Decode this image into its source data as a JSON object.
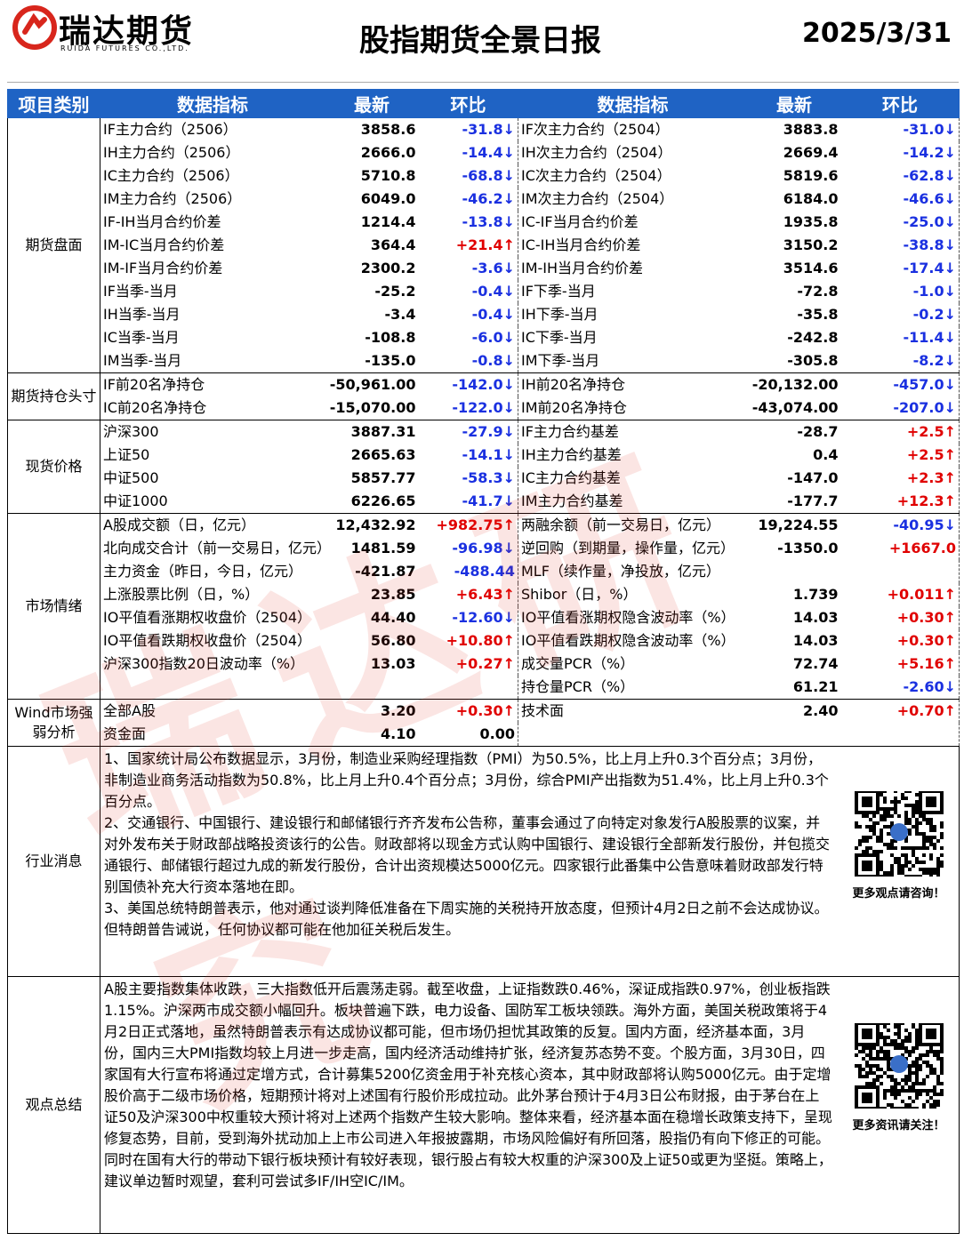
{
  "header": {
    "logo_name": "瑞达期货",
    "logo_sub": "RUIDA FUTURES CO.,LTD.",
    "title": "股指期货全景日报",
    "date": "2025/3/31"
  },
  "watermark": "瑞达研究",
  "table": {
    "columns": [
      "项目类别",
      "数据指标",
      "最新",
      "环比",
      "数据指标",
      "最新",
      "环比"
    ],
    "sections": [
      {
        "category": "期货盘面",
        "rows": [
          [
            "IF主力合约（2506）",
            "3858.6",
            "-31.8↓",
            "IF次主力合约（2504）",
            "3883.8",
            "-31.0↓"
          ],
          [
            "IH主力合约（2506）",
            "2666.0",
            "-14.4↓",
            "IH次主力合约（2504）",
            "2669.4",
            "-14.2↓"
          ],
          [
            "IC主力合约（2506）",
            "5710.8",
            "-68.8↓",
            "IC次主力合约（2504）",
            "5819.6",
            "-62.8↓"
          ],
          [
            "IM主力合约（2506）",
            "6049.0",
            "-46.2↓",
            "IM次主力合约（2504）",
            "6184.0",
            "-46.6↓"
          ],
          [
            "IF-IH当月合约价差",
            "1214.4",
            "-13.8↓",
            "IC-IF当月合约价差",
            "1935.8",
            "-25.0↓"
          ],
          [
            "IM-IC当月合约价差",
            "364.4",
            "+21.4↑",
            "IC-IH当月合约价差",
            "3150.2",
            "-38.8↓"
          ],
          [
            "IM-IF当月合约价差",
            "2300.2",
            "-3.6↓",
            "IM-IH当月合约价差",
            "3514.6",
            "-17.4↓"
          ],
          [
            "IF当季-当月",
            "-25.2",
            "-0.4↓",
            "IF下季-当月",
            "-72.8",
            "-1.0↓"
          ],
          [
            "IH当季-当月",
            "-3.4",
            "-0.4↓",
            "IH下季-当月",
            "-35.8",
            "-0.2↓"
          ],
          [
            "IC当季-当月",
            "-108.8",
            "-6.0↓",
            "IC下季-当月",
            "-242.8",
            "-11.4↓"
          ],
          [
            "IM当季-当月",
            "-135.0",
            "-0.8↓",
            "IM下季-当月",
            "-305.8",
            "-8.2↓"
          ]
        ]
      },
      {
        "category": "期货持仓头寸",
        "rows": [
          [
            "IF前20名净持仓",
            "-50,961.00",
            "-142.0↓",
            "IH前20名净持仓",
            "-20,132.00",
            "-457.0↓"
          ],
          [
            "IC前20名净持仓",
            "-15,070.00",
            "-122.0↓",
            "IM前20名净持仓",
            "-43,074.00",
            "-207.0↓"
          ]
        ]
      },
      {
        "category": "现货价格",
        "rows": [
          [
            "沪深300",
            "3887.31",
            "-27.9↓",
            "IF主力合约基差",
            "-28.7",
            "+2.5↑"
          ],
          [
            "上证50",
            "2665.63",
            "-14.1↓",
            "IH主力合约基差",
            "0.4",
            "+2.5↑"
          ],
          [
            "中证500",
            "5857.77",
            "-58.3↓",
            "IC主力合约基差",
            "-147.0",
            "+2.3↑"
          ],
          [
            "中证1000",
            "6226.65",
            "-41.7↓",
            "IM主力合约基差",
            "-177.7",
            "+12.3↑"
          ]
        ]
      },
      {
        "category": "市场情绪",
        "rows": [
          [
            "A股成交额（日，亿元）",
            "12,432.92",
            "+982.75↑",
            "两融余额（前一交易日，亿元）",
            "19,224.55",
            "-40.95↓"
          ],
          [
            "北向成交合计（前一交易日，亿元）",
            "1481.59",
            "-96.98↓",
            "逆回购（到期量，操作量，亿元）",
            "-1350.0",
            "+1667.0"
          ],
          [
            "主力资金（昨日，今日，亿元）",
            "-421.87",
            "-488.44",
            "MLF（续作量，净投放，亿元）",
            null,
            null
          ],
          [
            "上涨股票比例（日，%）",
            "23.85",
            "+6.43↑",
            "Shibor（日，%）",
            "1.739",
            "+0.011↑"
          ],
          [
            "IO平值看涨期权收盘价（2504）",
            "44.40",
            "-12.60↓",
            "IO平值看涨期权隐含波动率（%）",
            "14.03",
            "+0.30↑"
          ],
          [
            "IO平值看跌期权收盘价（2504）",
            "56.80",
            "+10.80↑",
            "IO平值看跌期权隐含波动率（%）",
            "14.03",
            "+0.30↑"
          ],
          [
            "沪深300指数20日波动率（%）",
            "13.03",
            "+0.27↑",
            "成交量PCR（%）",
            "72.74",
            "+5.16↑"
          ],
          [
            null,
            null,
            null,
            "持仓量PCR（%）",
            "61.21",
            "-2.60↓"
          ]
        ]
      },
      {
        "category": "Wind市场强弱分析",
        "rows": [
          [
            "全部A股",
            "3.20",
            "+0.30↑",
            "技术面",
            "2.40",
            "+0.70↑"
          ],
          [
            "资金面",
            "4.10",
            "0.00",
            null,
            null,
            null
          ]
        ]
      }
    ]
  },
  "news": {
    "category": "行业消息",
    "paragraphs": [
      "1、国家统计局公布数据显示，3月份，制造业采购经理指数（PMI）为50.5%，比上月上升0.3个百分点；3月份，非制造业商务活动指数为50.8%，比上月上升0.4个百分点；3月份，综合PMI产出指数为51.4%，比上月上升0.3个百分点。",
      "2、交通银行、中国银行、建设银行和邮储银行齐齐发布公告称，董事会通过了向特定对象发行A股股票的议案，并对外发布关于财政部战略投资该行的公告。财政部将以现金方式认购中国银行、建设银行全部新发行股份，并包揽交通银行、邮储银行超过九成的新发行股份，合计出资规模达5000亿元。四家银行此番集中公告意味着财政部发行特别国债补充大行资本落地在即。",
      "3、美国总统特朗普表示，他对通过谈判降低准备在下周实施的关税持开放态度，但预计4月2日之前不会达成协议。但特朗普告诫说，任何协议都可能在他加征关税后发生。"
    ],
    "qr_caption": "更多观点请咨询！"
  },
  "summary": {
    "category": "观点总结",
    "text": "A股主要指数集体收跌，三大指数低开后震荡走弱。截至收盘，上证指数跌0.46%，深证成指跌0.97%，创业板指跌1.15%。沪深两市成交额小幅回升。板块普遍下跌，电力设备、国防军工板块领跌。海外方面，美国关税政策将于4月2日正式落地，虽然特朗普表示有达成协议都可能，但市场仍担忧其政策的反复。国内方面，经济基本面，3月份，国内三大PMI指数均较上月进一步走高，国内经济活动维持扩张，经济复苏态势不变。个股方面，3月30日，四家国有大行宣布将通过定增方式，合计募集5200亿资金用于补充核心资本，其中财政部将认购5000亿元。由于定增股价高于二级市场价格，短期预计将对上述国有行股价形成拉动。此外茅台预计于4月3日公布财报，由于茅台在上证50及沪深300中权重较大预计将对上述两个指数产生较大影响。整体来看，经济基本面在稳增长政策支持下，呈现修复态势，目前，受到海外扰动加上上市公司进入年报披露期，市场风险偏好有所回落，股指仍有向下修正的可能。同时在国有大行的带动下银行板块预计有较好表现，银行股占有较大权重的沪深300及上证50或更为坚挺。策略上，建议单边暂时观望，套利可尝试多IF/IH空IC/IM。",
    "qr_caption": "更多资讯请关注！"
  }
}
